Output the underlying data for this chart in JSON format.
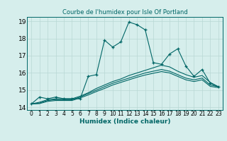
{
  "title": "Courbe de l'humidex pour Isle Of Portland",
  "xlabel": "Humidex (Indice chaleur)",
  "bg_color": "#d6eeec",
  "line_color": "#006666",
  "grid_color": "#b8d8d4",
  "xlim": [
    -0.5,
    23.5
  ],
  "ylim": [
    13.85,
    19.25
  ],
  "xticks": [
    0,
    1,
    2,
    3,
    4,
    5,
    6,
    7,
    8,
    9,
    10,
    11,
    12,
    13,
    14,
    15,
    16,
    17,
    18,
    19,
    20,
    21,
    22,
    23
  ],
  "yticks": [
    14,
    15,
    16,
    17,
    18,
    19
  ],
  "lines": [
    {
      "x": [
        0,
        1,
        2,
        3,
        4,
        5,
        6,
        7,
        8,
        9,
        10,
        11,
        12,
        13,
        14,
        15,
        16,
        17,
        18,
        19,
        20,
        21,
        22,
        23
      ],
      "y": [
        14.2,
        14.6,
        14.5,
        14.6,
        14.5,
        14.5,
        14.5,
        15.8,
        15.9,
        17.9,
        17.5,
        17.8,
        18.95,
        18.8,
        18.5,
        16.6,
        16.5,
        17.1,
        17.4,
        16.4,
        15.8,
        16.2,
        15.4,
        15.2
      ],
      "marker": true
    },
    {
      "x": [
        0,
        1,
        2,
        3,
        4,
        5,
        6,
        7,
        8,
        9,
        10,
        11,
        12,
        13,
        14,
        15,
        16,
        17,
        18,
        19,
        20,
        21,
        22,
        23
      ],
      "y": [
        14.2,
        14.3,
        14.45,
        14.5,
        14.5,
        14.5,
        14.65,
        14.85,
        15.1,
        15.3,
        15.5,
        15.65,
        15.85,
        16.0,
        16.15,
        16.3,
        16.45,
        16.35,
        16.1,
        15.9,
        15.75,
        15.85,
        15.45,
        15.2
      ],
      "marker": false
    },
    {
      "x": [
        0,
        1,
        2,
        3,
        4,
        5,
        6,
        7,
        8,
        9,
        10,
        11,
        12,
        13,
        14,
        15,
        16,
        17,
        18,
        19,
        20,
        21,
        22,
        23
      ],
      "y": [
        14.2,
        14.25,
        14.4,
        14.45,
        14.45,
        14.45,
        14.6,
        14.8,
        15.0,
        15.2,
        15.4,
        15.55,
        15.7,
        15.85,
        16.0,
        16.1,
        16.2,
        16.1,
        15.9,
        15.7,
        15.6,
        15.7,
        15.3,
        15.2
      ],
      "marker": false
    },
    {
      "x": [
        0,
        1,
        2,
        3,
        4,
        5,
        6,
        7,
        8,
        9,
        10,
        11,
        12,
        13,
        14,
        15,
        16,
        17,
        18,
        19,
        20,
        21,
        22,
        23
      ],
      "y": [
        14.2,
        14.22,
        14.35,
        14.4,
        14.4,
        14.4,
        14.55,
        14.72,
        14.92,
        15.1,
        15.3,
        15.45,
        15.6,
        15.75,
        15.88,
        15.98,
        16.08,
        16.0,
        15.8,
        15.6,
        15.5,
        15.6,
        15.22,
        15.15
      ],
      "marker": false
    }
  ]
}
